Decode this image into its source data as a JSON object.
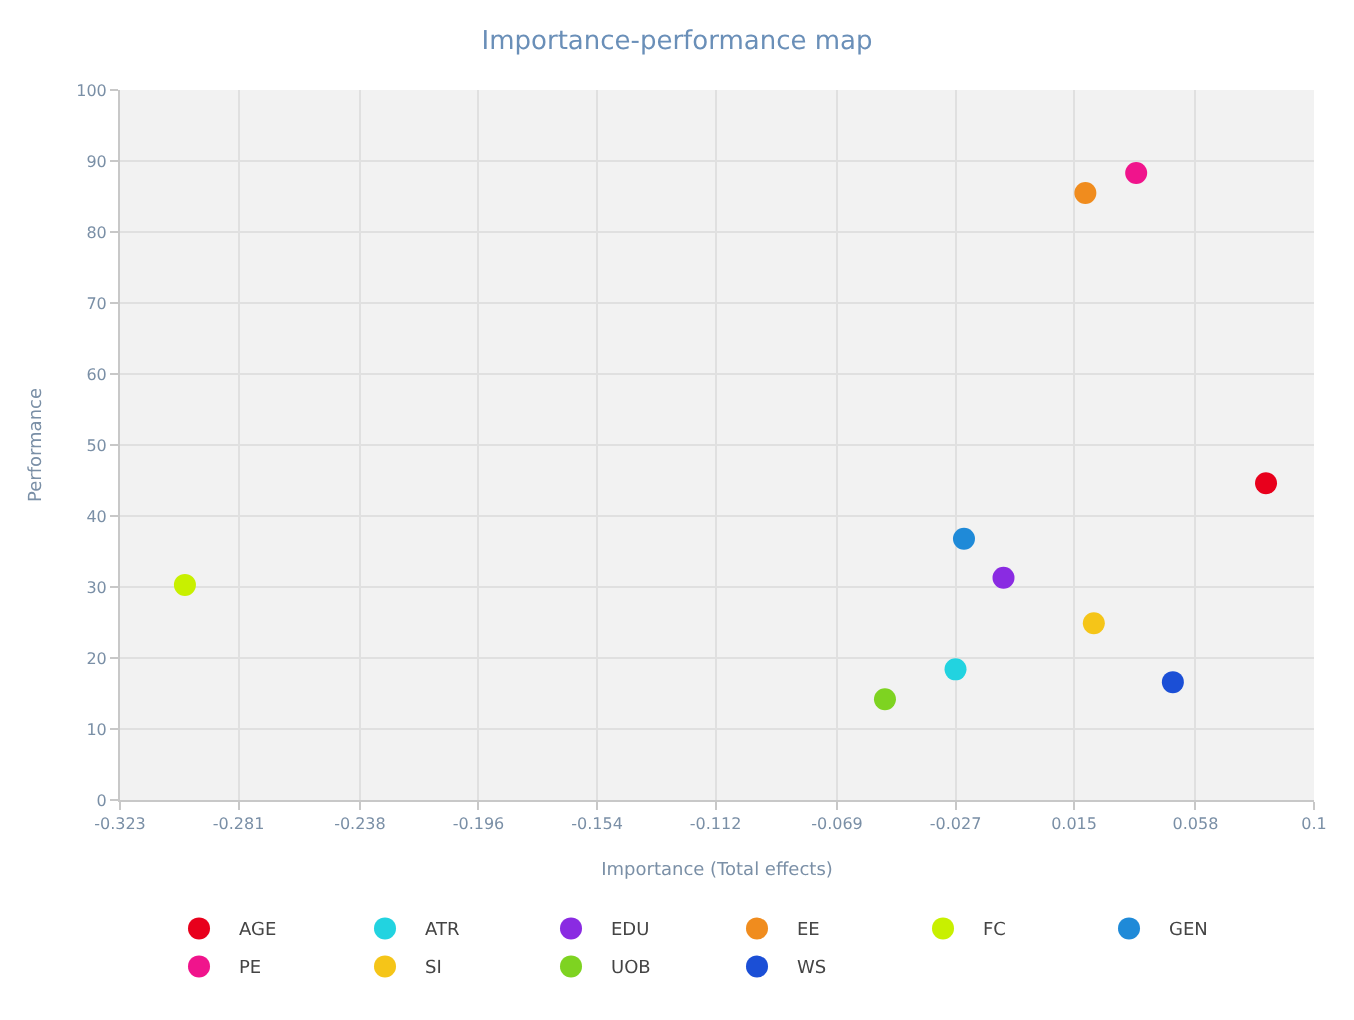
{
  "chart_data": {
    "type": "scatter",
    "title": "Importance-performance map",
    "xlabel": "Importance (Total effects)",
    "ylabel": "Performance",
    "xlim": [
      -0.323,
      0.1
    ],
    "xticks": [
      -0.323,
      -0.281,
      -0.238,
      -0.196,
      -0.154,
      -0.112,
      -0.069,
      -0.027,
      0.015,
      0.058,
      0.1
    ],
    "ylim": [
      0,
      100
    ],
    "yticks": [
      0,
      10,
      20,
      30,
      40,
      50,
      60,
      70,
      80,
      90,
      100
    ],
    "grid": true,
    "legend": "bottom",
    "marker": "circle",
    "series": [
      {
        "name": "AGE",
        "color": "#e8001c",
        "x": [
          0.083
        ],
        "values": [
          44.6
        ]
      },
      {
        "name": "ATR",
        "color": "#22d3e0",
        "x": [
          -0.027
        ],
        "values": [
          18.4
        ]
      },
      {
        "name": "EDU",
        "color": "#8a2be2",
        "x": [
          -0.01
        ],
        "values": [
          31.3
        ]
      },
      {
        "name": "EE",
        "color": "#f08c1e",
        "x": [
          0.019
        ],
        "values": [
          85.5
        ]
      },
      {
        "name": "FC",
        "color": "#c8f000",
        "x": [
          -0.3
        ],
        "values": [
          30.3
        ]
      },
      {
        "name": "GEN",
        "color": "#1f8ad8",
        "x": [
          -0.024
        ],
        "values": [
          36.8
        ]
      },
      {
        "name": "PE",
        "color": "#f0148c",
        "x": [
          0.037
        ],
        "values": [
          88.3
        ]
      },
      {
        "name": "SI",
        "color": "#f5c518",
        "x": [
          0.022
        ],
        "values": [
          24.9
        ]
      },
      {
        "name": "UOB",
        "color": "#7ed321",
        "x": [
          -0.052
        ],
        "values": [
          14.2
        ]
      },
      {
        "name": "WS",
        "color": "#1b4fd6",
        "x": [
          0.05
        ],
        "values": [
          16.6
        ]
      }
    ]
  }
}
